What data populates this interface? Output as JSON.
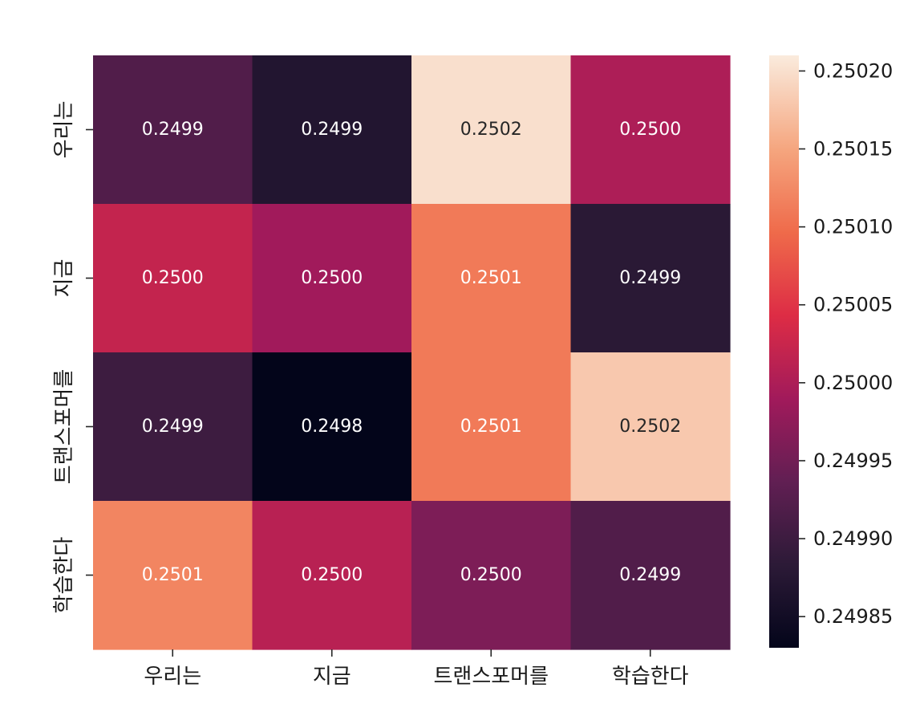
{
  "chart_data": {
    "type": "heatmap",
    "title": "",
    "xlabel": "",
    "ylabel": "",
    "x_categories": [
      "우리는",
      "지금",
      "트랜스포머를",
      "학습한다"
    ],
    "y_categories": [
      "우리는",
      "지금",
      "트랜스포머를",
      "학습한다"
    ],
    "values": [
      [
        0.24992,
        0.24987,
        0.2502,
        0.25
      ],
      [
        0.25002,
        0.24999,
        0.25011,
        0.24988
      ],
      [
        0.2499,
        0.24983,
        0.25011,
        0.25018
      ],
      [
        0.25012,
        0.25001,
        0.24996,
        0.24992
      ]
    ],
    "cell_labels": [
      [
        "0.2499",
        "0.2499",
        "0.2502",
        "0.2500"
      ],
      [
        "0.2500",
        "0.2500",
        "0.2501",
        "0.2499"
      ],
      [
        "0.2499",
        "0.2498",
        "0.2501",
        "0.2502"
      ],
      [
        "0.2501",
        "0.2500",
        "0.2500",
        "0.2499"
      ]
    ],
    "colorbar": {
      "colormap": "rocket",
      "vmin": 0.24983,
      "vmax": 0.25021,
      "ticks": [
        0.24985,
        0.2499,
        0.24995,
        0.25,
        0.25005,
        0.2501,
        0.25015,
        0.2502
      ],
      "tick_labels": [
        "0.24985",
        "0.24990",
        "0.24995",
        "0.25000",
        "0.25005",
        "0.25010",
        "0.25015",
        "0.25020"
      ]
    }
  }
}
